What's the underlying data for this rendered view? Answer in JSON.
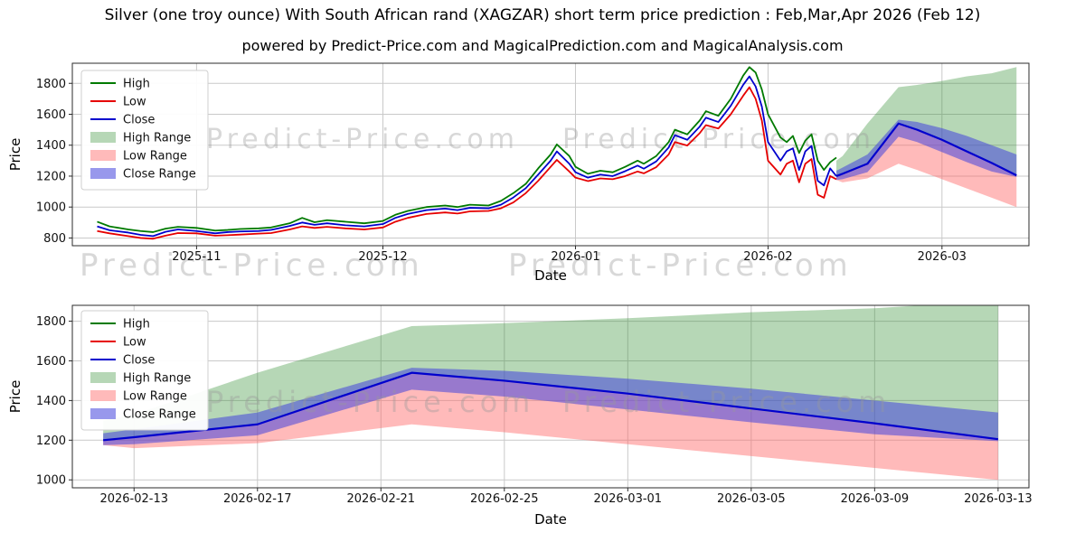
{
  "page": {
    "title": "Silver (one troy ounce) With South African rand (XAGZAR) short term price prediction : Feb,Mar,Apr 2026 (Feb 12)",
    "subtitle": "powered by Predict-Price.com and MagicalPrediction.com and MagicalAnalysis.com",
    "watermark": "Predict-Price.com"
  },
  "colors": {
    "high": "#007a00",
    "low": "#e60000",
    "close": "#0000cd",
    "high_range": "#2e8b2e",
    "low_range": "#ff6666",
    "close_range": "#4444dd",
    "grid": "#c9c9c9",
    "watermark": "#999999",
    "axis": "#2b2b2b",
    "text": "#111111"
  },
  "chart_data": [
    {
      "type": "line",
      "title": "",
      "xlabel": "Date",
      "ylabel": "Price",
      "xlim": [
        "2025-10-12",
        "2026-03-15"
      ],
      "ylim": [
        750,
        1930
      ],
      "yticks": [
        800,
        1000,
        1200,
        1400,
        1600,
        1800
      ],
      "xticks": [
        {
          "d": "2025-11-01",
          "label": "2025-11"
        },
        {
          "d": "2025-12-01",
          "label": "2025-12"
        },
        {
          "d": "2026-01-01",
          "label": "2026-01"
        },
        {
          "d": "2026-02-01",
          "label": "2026-02"
        },
        {
          "d": "2026-03-01",
          "label": "2026-03"
        }
      ],
      "legend": [
        {
          "label": "High",
          "type": "line",
          "color": "high"
        },
        {
          "label": "Low",
          "type": "line",
          "color": "low"
        },
        {
          "label": "Close",
          "type": "line",
          "color": "close"
        },
        {
          "label": "High Range",
          "type": "band",
          "color": "high_range",
          "opacity": 0.35
        },
        {
          "label": "Low Range",
          "type": "band",
          "color": "low_range",
          "opacity": 0.45
        },
        {
          "label": "Close Range",
          "type": "band",
          "color": "close_range",
          "opacity": 0.55
        }
      ],
      "historical": {
        "dates": [
          "2025-10-16",
          "2025-10-18",
          "2025-10-21",
          "2025-10-23",
          "2025-10-25",
          "2025-10-27",
          "2025-10-29",
          "2025-11-01",
          "2025-11-04",
          "2025-11-06",
          "2025-11-08",
          "2025-11-11",
          "2025-11-13",
          "2025-11-16",
          "2025-11-18",
          "2025-11-20",
          "2025-11-22",
          "2025-11-25",
          "2025-11-28",
          "2025-12-01",
          "2025-12-03",
          "2025-12-05",
          "2025-12-08",
          "2025-12-11",
          "2025-12-13",
          "2025-12-15",
          "2025-12-18",
          "2025-12-20",
          "2025-12-22",
          "2025-12-24",
          "2025-12-26",
          "2025-12-28",
          "2025-12-29",
          "2025-12-31",
          "2026-01-01",
          "2026-01-03",
          "2026-01-05",
          "2026-01-07",
          "2026-01-09",
          "2026-01-11",
          "2026-01-12",
          "2026-01-14",
          "2026-01-16",
          "2026-01-17",
          "2026-01-19",
          "2026-01-21",
          "2026-01-22",
          "2026-01-24",
          "2026-01-26",
          "2026-01-28",
          "2026-01-29",
          "2026-01-30",
          "2026-01-31",
          "2026-02-01",
          "2026-02-03",
          "2026-02-04",
          "2026-02-05",
          "2026-02-06",
          "2026-02-07",
          "2026-02-08",
          "2026-02-09",
          "2026-02-10",
          "2026-02-11",
          "2026-02-12"
        ],
        "high": [
          905,
          875,
          855,
          845,
          838,
          860,
          872,
          865,
          848,
          852,
          858,
          862,
          868,
          895,
          930,
          902,
          915,
          905,
          895,
          910,
          950,
          975,
          1000,
          1010,
          1000,
          1015,
          1010,
          1040,
          1090,
          1150,
          1250,
          1340,
          1405,
          1330,
          1260,
          1215,
          1235,
          1225,
          1260,
          1300,
          1280,
          1330,
          1420,
          1500,
          1470,
          1560,
          1620,
          1590,
          1700,
          1850,
          1905,
          1870,
          1760,
          1600,
          1450,
          1420,
          1460,
          1350,
          1430,
          1470,
          1300,
          1240,
          1290,
          1320
        ],
        "low": [
          845,
          830,
          812,
          800,
          795,
          815,
          832,
          830,
          815,
          818,
          822,
          828,
          832,
          855,
          875,
          865,
          872,
          862,
          855,
          868,
          905,
          930,
          955,
          965,
          958,
          972,
          975,
          992,
          1030,
          1090,
          1170,
          1260,
          1305,
          1230,
          1190,
          1168,
          1185,
          1180,
          1200,
          1230,
          1218,
          1258,
          1340,
          1420,
          1398,
          1478,
          1530,
          1508,
          1600,
          1720,
          1775,
          1700,
          1560,
          1300,
          1210,
          1280,
          1300,
          1160,
          1280,
          1310,
          1080,
          1060,
          1200,
          1180
        ],
        "close": [
          875,
          850,
          835,
          820,
          812,
          840,
          855,
          845,
          830,
          838,
          842,
          845,
          852,
          878,
          900,
          885,
          895,
          882,
          875,
          890,
          930,
          955,
          980,
          990,
          980,
          995,
          992,
          1015,
          1062,
          1122,
          1210,
          1300,
          1360,
          1280,
          1225,
          1190,
          1210,
          1200,
          1232,
          1268,
          1248,
          1295,
          1385,
          1465,
          1435,
          1520,
          1578,
          1550,
          1655,
          1790,
          1845,
          1780,
          1650,
          1420,
          1300,
          1360,
          1380,
          1240,
          1360,
          1395,
          1170,
          1140,
          1250,
          1200
        ]
      },
      "prediction": {
        "dates": [
          "2026-02-12",
          "2026-02-13",
          "2026-02-17",
          "2026-02-22",
          "2026-02-25",
          "2026-03-01",
          "2026-03-05",
          "2026-03-09",
          "2026-03-13"
        ],
        "close": [
          1200,
          1215,
          1280,
          1540,
          1500,
          1435,
          1360,
          1285,
          1205
        ],
        "high_upper": [
          1300,
          1330,
          1540,
          1775,
          1790,
          1815,
          1845,
          1865,
          1905
        ],
        "low_lower": [
          1175,
          1160,
          1185,
          1280,
          1240,
          1180,
          1120,
          1060,
          1000
        ],
        "close_upper": [
          1235,
          1255,
          1340,
          1565,
          1550,
          1510,
          1460,
          1400,
          1340
        ],
        "close_lower": [
          1175,
          1180,
          1225,
          1455,
          1420,
          1355,
          1290,
          1230,
          1195
        ]
      }
    },
    {
      "type": "line",
      "title": "",
      "xlabel": "Date",
      "ylabel": "Price",
      "xlim": [
        "2026-02-11",
        "2026-03-14"
      ],
      "ylim": [
        960,
        1880
      ],
      "yticks": [
        1000,
        1200,
        1400,
        1600,
        1800
      ],
      "xticks": [
        {
          "d": "2026-02-13",
          "label": "2026-02-13"
        },
        {
          "d": "2026-02-17",
          "label": "2026-02-17"
        },
        {
          "d": "2026-02-21",
          "label": "2026-02-21"
        },
        {
          "d": "2026-02-25",
          "label": "2026-02-25"
        },
        {
          "d": "2026-03-01",
          "label": "2026-03-01"
        },
        {
          "d": "2026-03-05",
          "label": "2026-03-05"
        },
        {
          "d": "2026-03-09",
          "label": "2026-03-09"
        },
        {
          "d": "2026-03-13",
          "label": "2026-03-13"
        }
      ],
      "legend": [
        {
          "label": "High",
          "type": "line",
          "color": "high"
        },
        {
          "label": "Low",
          "type": "line",
          "color": "low"
        },
        {
          "label": "Close",
          "type": "line",
          "color": "close"
        },
        {
          "label": "High Range",
          "type": "band",
          "color": "high_range",
          "opacity": 0.35
        },
        {
          "label": "Low Range",
          "type": "band",
          "color": "low_range",
          "opacity": 0.45
        },
        {
          "label": "Close Range",
          "type": "band",
          "color": "close_range",
          "opacity": 0.55
        }
      ],
      "prediction": {
        "dates": [
          "2026-02-12",
          "2026-02-13",
          "2026-02-17",
          "2026-02-22",
          "2026-02-25",
          "2026-03-01",
          "2026-03-05",
          "2026-03-09",
          "2026-03-13"
        ],
        "close": [
          1200,
          1215,
          1280,
          1540,
          1500,
          1435,
          1360,
          1285,
          1205
        ],
        "high_upper": [
          1300,
          1330,
          1540,
          1775,
          1790,
          1815,
          1845,
          1865,
          1905
        ],
        "low_lower": [
          1175,
          1160,
          1185,
          1280,
          1240,
          1180,
          1120,
          1060,
          1000
        ],
        "close_upper": [
          1235,
          1255,
          1340,
          1565,
          1550,
          1510,
          1460,
          1400,
          1340
        ],
        "close_lower": [
          1175,
          1180,
          1225,
          1455,
          1420,
          1355,
          1290,
          1230,
          1195
        ]
      }
    }
  ]
}
